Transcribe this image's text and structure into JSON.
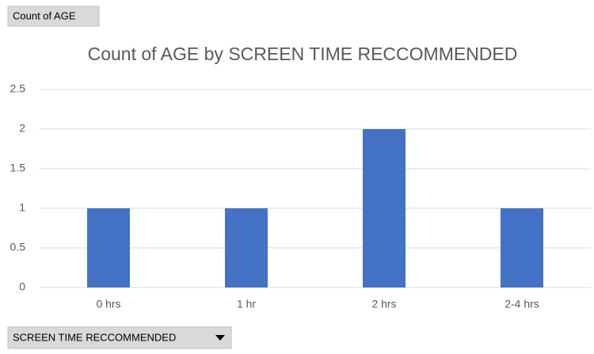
{
  "chart_data": {
    "type": "bar",
    "title": "Count of AGE by SCREEN TIME RECCOMMENDED",
    "value_field_button": "Count of AGE",
    "axis_field_button": "SCREEN TIME RECCOMMENDED",
    "categories": [
      "0 hrs",
      "1 hr",
      "2 hrs",
      "2-4 hrs"
    ],
    "values": [
      1,
      1,
      2,
      1
    ],
    "color": "#4472c4",
    "ylim": [
      0,
      2.5
    ],
    "yticks": [
      0,
      0.5,
      1,
      1.5,
      2,
      2.5
    ],
    "grid": true
  }
}
